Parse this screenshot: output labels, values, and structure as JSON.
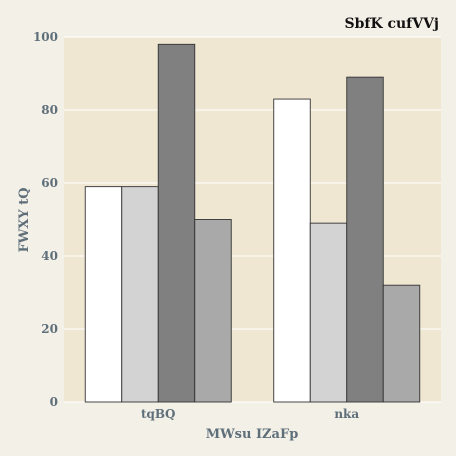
{
  "chart_data": {
    "type": "bar",
    "title": "SbfK cufVVj",
    "xlabel": "MWsu IZaFp",
    "ylabel": "FWXY tQ",
    "categories": [
      "tqBQ",
      "nka"
    ],
    "series": [
      {
        "values": [
          59,
          83
        ],
        "color": "#ffffff"
      },
      {
        "values": [
          59,
          49
        ],
        "color": "#d3d3d3"
      },
      {
        "values": [
          98,
          89
        ],
        "color": "#808080"
      },
      {
        "values": [
          50,
          32
        ],
        "color": "#a9a9a9"
      }
    ],
    "ylim": [
      0,
      100
    ],
    "yticks": [
      0,
      20,
      40,
      60,
      80,
      100
    ],
    "grid": true,
    "legend": "none",
    "colors": {
      "plot_background": "#efe7d2",
      "page_background": "#f3f0e8",
      "grid": "#ffffff",
      "text": "#5f6f7a",
      "bar_edge": "#333333"
    }
  }
}
